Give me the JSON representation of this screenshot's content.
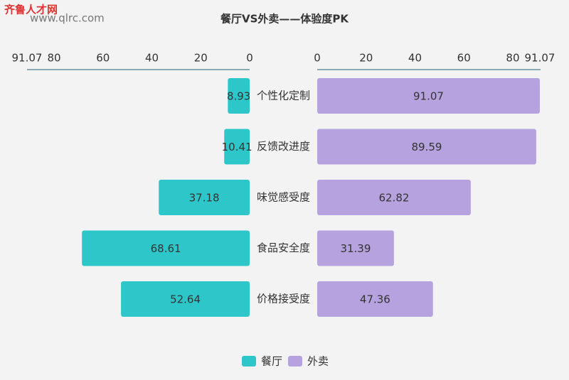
{
  "chart_data": {
    "type": "butterfly-bar",
    "title": "餐厅VS外卖——体验度PK",
    "watermark": {
      "name": "齐鲁人才网",
      "url": "www.qlrc.com"
    },
    "categories": [
      "个性化定制",
      "反馈改进度",
      "味觉感受度",
      "食品安全度",
      "价格接受度"
    ],
    "series": [
      {
        "name": "餐厅",
        "color": "#2ec7c9",
        "values": [
          8.93,
          10.41,
          37.18,
          68.61,
          52.64
        ]
      },
      {
        "name": "外卖",
        "color": "#b6a2de",
        "values": [
          91.07,
          89.59,
          62.82,
          31.39,
          47.36
        ]
      }
    ],
    "xlim": [
      0,
      91.07
    ],
    "xticks": [
      0,
      20,
      40,
      60,
      80,
      91.07
    ],
    "legend": "bottom"
  }
}
